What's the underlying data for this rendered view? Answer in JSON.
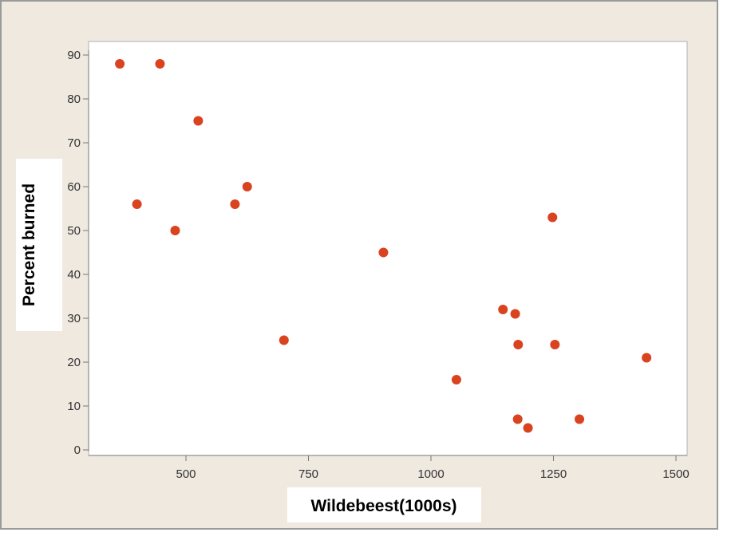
{
  "chart_data": {
    "type": "scatter",
    "xlabel": "Wildebeest(1000s)",
    "ylabel": "Percent burned",
    "xlim": [
      300,
      1500
    ],
    "ylim": [
      0,
      90
    ],
    "xticks": [
      500,
      750,
      1000,
      1250,
      1500
    ],
    "yticks": [
      0,
      10,
      20,
      30,
      40,
      50,
      60,
      70,
      80,
      90
    ],
    "grid": false,
    "points": [
      {
        "x": 365,
        "y": 88
      },
      {
        "x": 447,
        "y": 88
      },
      {
        "x": 525,
        "y": 75
      },
      {
        "x": 625,
        "y": 60
      },
      {
        "x": 400,
        "y": 56
      },
      {
        "x": 600,
        "y": 56
      },
      {
        "x": 478,
        "y": 50
      },
      {
        "x": 903,
        "y": 45
      },
      {
        "x": 1248,
        "y": 53
      },
      {
        "x": 700,
        "y": 25
      },
      {
        "x": 1147,
        "y": 32
      },
      {
        "x": 1172,
        "y": 31
      },
      {
        "x": 1178,
        "y": 24
      },
      {
        "x": 1253,
        "y": 24
      },
      {
        "x": 1440,
        "y": 21
      },
      {
        "x": 1052,
        "y": 16
      },
      {
        "x": 1177,
        "y": 7
      },
      {
        "x": 1198,
        "y": 5
      },
      {
        "x": 1303,
        "y": 7
      }
    ]
  },
  "colors": {
    "frame_background": "#efe9e0",
    "plot_background": "#ffffff",
    "marker": "#d9431f",
    "axis": "#777777"
  }
}
